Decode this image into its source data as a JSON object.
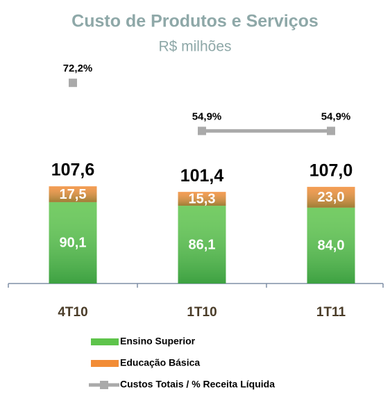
{
  "chart_data": {
    "type": "bar",
    "title": "Custo de Produtos e Serviços",
    "subtitle": "R$ milhões",
    "categories": [
      "4T10",
      "1T10",
      "1T11"
    ],
    "stacked": true,
    "ylim": [
      0,
      240
    ],
    "y2lim": [
      0,
      78
    ],
    "series": [
      {
        "name": "Ensino Superior",
        "color": "#5ec44b",
        "values": [
          90.1,
          86.1,
          84.0
        ],
        "value_labels": [
          "90,1",
          "86,1",
          "84,0"
        ]
      },
      {
        "name": "Educação Básica",
        "color": "#f28c36",
        "values": [
          17.5,
          15.3,
          23.0
        ],
        "value_labels": [
          "17,5",
          "15,3",
          "23,0"
        ]
      },
      {
        "name": "Custos Totais / % Receita Líquida",
        "color": "#aaaaaa",
        "type": "line",
        "axis": "y2",
        "values": [
          72.2,
          54.9,
          54.9
        ],
        "value_labels": [
          "72,2%",
          "54,9%",
          "54,9%"
        ]
      }
    ],
    "totals": {
      "values": [
        107.6,
        101.4,
        107.0
      ],
      "value_labels": [
        "107,6",
        "101,4",
        "107,0"
      ]
    }
  }
}
